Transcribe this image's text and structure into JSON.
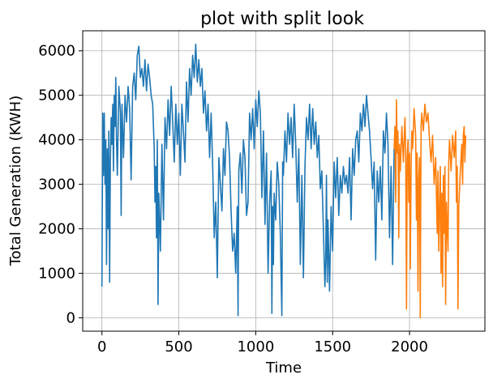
{
  "chart_data": {
    "type": "line",
    "title": "plot with split look",
    "xlabel": "Time",
    "ylabel": "Total Generation (KWH)",
    "xlim": [
      -125,
      2490
    ],
    "ylim": [
      -300,
      6450
    ],
    "xticks": [
      0,
      500,
      1000,
      1500,
      2000
    ],
    "yticks": [
      0,
      1000,
      2000,
      3000,
      4000,
      5000,
      6000
    ],
    "grid": true,
    "series": [
      {
        "color": "#1f77b4",
        "points": [
          [
            0,
            700
          ],
          [
            5,
            4600
          ],
          [
            10,
            3200
          ],
          [
            15,
            4600
          ],
          [
            20,
            3000
          ],
          [
            25,
            4000
          ],
          [
            30,
            1200
          ],
          [
            35,
            3800
          ],
          [
            40,
            2000
          ],
          [
            45,
            4200
          ],
          [
            50,
            800
          ],
          [
            55,
            3500
          ],
          [
            60,
            4500
          ],
          [
            65,
            3900
          ],
          [
            70,
            4800
          ],
          [
            75,
            3300
          ],
          [
            80,
            5000
          ],
          [
            85,
            4300
          ],
          [
            90,
            5400
          ],
          [
            95,
            4000
          ],
          [
            100,
            3200
          ],
          [
            110,
            5200
          ],
          [
            120,
            4600
          ],
          [
            125,
            2300
          ],
          [
            130,
            4800
          ],
          [
            140,
            3600
          ],
          [
            150,
            5000
          ],
          [
            160,
            4400
          ],
          [
            170,
            5200
          ],
          [
            180,
            4700
          ],
          [
            190,
            3100
          ],
          [
            200,
            5200
          ],
          [
            210,
            5500
          ],
          [
            220,
            4900
          ],
          [
            230,
            5900
          ],
          [
            240,
            6100
          ],
          [
            250,
            5400
          ],
          [
            260,
            5600
          ],
          [
            270,
            5200
          ],
          [
            280,
            5800
          ],
          [
            290,
            5100
          ],
          [
            300,
            5700
          ],
          [
            310,
            5400
          ],
          [
            320,
            5000
          ],
          [
            330,
            4800
          ],
          [
            340,
            3800
          ],
          [
            345,
            2600
          ],
          [
            350,
            3400
          ],
          [
            355,
            1800
          ],
          [
            360,
            4000
          ],
          [
            365,
            300
          ],
          [
            370,
            2800
          ],
          [
            380,
            1500
          ],
          [
            390,
            3900
          ],
          [
            400,
            2200
          ],
          [
            410,
            4500
          ],
          [
            420,
            3800
          ],
          [
            430,
            4900
          ],
          [
            440,
            4100
          ],
          [
            450,
            5200
          ],
          [
            460,
            4400
          ],
          [
            470,
            3500
          ],
          [
            480,
            4800
          ],
          [
            490,
            3900
          ],
          [
            500,
            4600
          ],
          [
            510,
            3200
          ],
          [
            520,
            4800
          ],
          [
            530,
            4200
          ],
          [
            540,
            3500
          ],
          [
            550,
            5300
          ],
          [
            560,
            4400
          ],
          [
            570,
            5600
          ],
          [
            580,
            5000
          ],
          [
            590,
            5900
          ],
          [
            600,
            5400
          ],
          [
            610,
            6150
          ],
          [
            620,
            5300
          ],
          [
            630,
            5800
          ],
          [
            640,
            5200
          ],
          [
            650,
            5600
          ],
          [
            660,
            4600
          ],
          [
            670,
            5100
          ],
          [
            680,
            4200
          ],
          [
            690,
            4800
          ],
          [
            700,
            3600
          ],
          [
            710,
            4600
          ],
          [
            720,
            3400
          ],
          [
            730,
            1800
          ],
          [
            740,
            2600
          ],
          [
            750,
            900
          ],
          [
            760,
            3600
          ],
          [
            770,
            3000
          ],
          [
            780,
            2400
          ],
          [
            790,
            3800
          ],
          [
            800,
            3200
          ],
          [
            810,
            4400
          ],
          [
            820,
            4200
          ],
          [
            830,
            3600
          ],
          [
            840,
            2400
          ],
          [
            850,
            1500
          ],
          [
            860,
            1900
          ],
          [
            870,
            1000
          ],
          [
            880,
            2500
          ],
          [
            885,
            50
          ],
          [
            890,
            3300
          ],
          [
            900,
            3700
          ],
          [
            910,
            2800
          ],
          [
            920,
            4000
          ],
          [
            930,
            3600
          ],
          [
            940,
            2300
          ],
          [
            950,
            2600
          ],
          [
            960,
            4600
          ],
          [
            970,
            4000
          ],
          [
            980,
            4700
          ],
          [
            990,
            3800
          ],
          [
            1000,
            4900
          ],
          [
            1010,
            4300
          ],
          [
            1020,
            5100
          ],
          [
            1030,
            4600
          ],
          [
            1040,
            2700
          ],
          [
            1050,
            4200
          ],
          [
            1060,
            2100
          ],
          [
            1070,
            3700
          ],
          [
            1080,
            1000
          ],
          [
            1090,
            2600
          ],
          [
            1100,
            3300
          ],
          [
            1105,
            100
          ],
          [
            1110,
            2500
          ],
          [
            1115,
            1200
          ],
          [
            1120,
            2800
          ],
          [
            1130,
            2200
          ],
          [
            1140,
            3500
          ],
          [
            1150,
            3000
          ],
          [
            1160,
            1900
          ],
          [
            1170,
            50
          ],
          [
            1175,
            3500
          ],
          [
            1180,
            3200
          ],
          [
            1190,
            4200
          ],
          [
            1200,
            3500
          ],
          [
            1210,
            4600
          ],
          [
            1220,
            3900
          ],
          [
            1230,
            4500
          ],
          [
            1240,
            3600
          ],
          [
            1250,
            4800
          ],
          [
            1260,
            3900
          ],
          [
            1270,
            2600
          ],
          [
            1280,
            3800
          ],
          [
            1290,
            1200
          ],
          [
            1300,
            3200
          ],
          [
            1310,
            900
          ],
          [
            1320,
            3400
          ],
          [
            1330,
            4500
          ],
          [
            1340,
            4000
          ],
          [
            1350,
            4800
          ],
          [
            1360,
            3800
          ],
          [
            1370,
            4700
          ],
          [
            1380,
            3900
          ],
          [
            1390,
            4400
          ],
          [
            1400,
            3600
          ],
          [
            1410,
            4100
          ],
          [
            1420,
            2900
          ],
          [
            1430,
            3300
          ],
          [
            1440,
            2000
          ],
          [
            1450,
            700
          ],
          [
            1455,
            1300
          ],
          [
            1460,
            3200
          ],
          [
            1465,
            800
          ],
          [
            1470,
            2200
          ],
          [
            1480,
            600
          ],
          [
            1490,
            2500
          ],
          [
            1500,
            1500
          ],
          [
            1510,
            3500
          ],
          [
            1520,
            2700
          ],
          [
            1530,
            3600
          ],
          [
            1540,
            2300
          ],
          [
            1550,
            3200
          ],
          [
            1560,
            2800
          ],
          [
            1570,
            3400
          ],
          [
            1580,
            3000
          ],
          [
            1590,
            3200
          ],
          [
            1600,
            2800
          ],
          [
            1610,
            3600
          ],
          [
            1620,
            2200
          ],
          [
            1630,
            3800
          ],
          [
            1640,
            3200
          ],
          [
            1650,
            4000
          ],
          [
            1660,
            4200
          ],
          [
            1670,
            3500
          ],
          [
            1680,
            4600
          ],
          [
            1690,
            4200
          ],
          [
            1700,
            4800
          ],
          [
            1710,
            4300
          ],
          [
            1720,
            5000
          ],
          [
            1730,
            4600
          ],
          [
            1740,
            4200
          ],
          [
            1750,
            3600
          ],
          [
            1760,
            2900
          ],
          [
            1770,
            3500
          ],
          [
            1780,
            1300
          ],
          [
            1790,
            3300
          ],
          [
            1800,
            2600
          ],
          [
            1810,
            3400
          ],
          [
            1820,
            2200
          ],
          [
            1830,
            4200
          ],
          [
            1840,
            3700
          ],
          [
            1850,
            4600
          ],
          [
            1860,
            3900
          ],
          [
            1870,
            1800
          ],
          [
            1880,
            3400
          ],
          [
            1890,
            1200
          ],
          [
            1900,
            3800
          ]
        ]
      },
      {
        "color": "#ff7f0e",
        "points": [
          [
            1900,
            3800
          ],
          [
            1905,
            4300
          ],
          [
            1910,
            2600
          ],
          [
            1915,
            4900
          ],
          [
            1920,
            3700
          ],
          [
            1925,
            4200
          ],
          [
            1930,
            1800
          ],
          [
            1935,
            3900
          ],
          [
            1940,
            3300
          ],
          [
            1950,
            4300
          ],
          [
            1960,
            3500
          ],
          [
            1970,
            4500
          ],
          [
            1975,
            3800
          ],
          [
            1980,
            200
          ],
          [
            1985,
            3600
          ],
          [
            1990,
            4000
          ],
          [
            1995,
            2600
          ],
          [
            2000,
            3700
          ],
          [
            2005,
            1100
          ],
          [
            2010,
            3400
          ],
          [
            2015,
            4200
          ],
          [
            2020,
            3800
          ],
          [
            2030,
            4700
          ],
          [
            2040,
            4100
          ],
          [
            2045,
            2200
          ],
          [
            2050,
            3700
          ],
          [
            2055,
            600
          ],
          [
            2060,
            3100
          ],
          [
            2065,
            3600
          ],
          [
            2070,
            0
          ],
          [
            2075,
            4300
          ],
          [
            2080,
            4600
          ],
          [
            2090,
            4200
          ],
          [
            2100,
            4800
          ],
          [
            2110,
            4400
          ],
          [
            2120,
            4600
          ],
          [
            2130,
            4000
          ],
          [
            2140,
            3500
          ],
          [
            2150,
            4100
          ],
          [
            2160,
            3000
          ],
          [
            2170,
            3600
          ],
          [
            2180,
            1900
          ],
          [
            2185,
            3300
          ],
          [
            2190,
            1500
          ],
          [
            2200,
            3400
          ],
          [
            2205,
            1000
          ],
          [
            2210,
            2800
          ],
          [
            2215,
            700
          ],
          [
            2220,
            3200
          ],
          [
            2225,
            1900
          ],
          [
            2230,
            3400
          ],
          [
            2235,
            300
          ],
          [
            2240,
            2600
          ],
          [
            2250,
            1500
          ],
          [
            2255,
            3500
          ],
          [
            2260,
            4000
          ],
          [
            2270,
            3300
          ],
          [
            2280,
            4100
          ],
          [
            2290,
            3600
          ],
          [
            2300,
            4200
          ],
          [
            2305,
            2600
          ],
          [
            2310,
            3400
          ],
          [
            2315,
            200
          ],
          [
            2320,
            2500
          ],
          [
            2330,
            3300
          ],
          [
            2340,
            3900
          ],
          [
            2345,
            3000
          ],
          [
            2350,
            4100
          ],
          [
            2355,
            4300
          ],
          [
            2360,
            3500
          ],
          [
            2365,
            4100
          ]
        ]
      }
    ]
  }
}
